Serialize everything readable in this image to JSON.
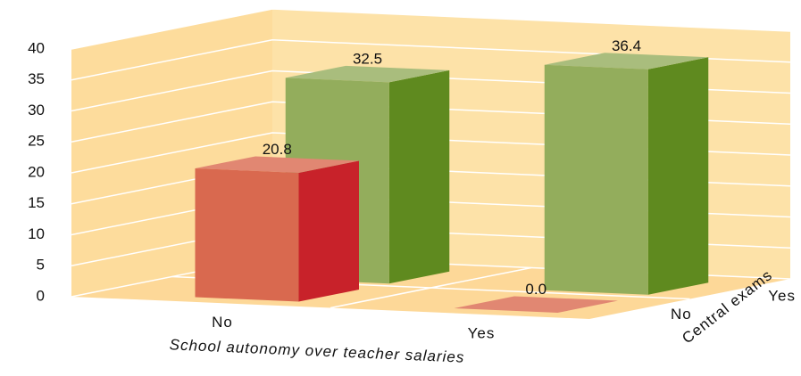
{
  "chart_data": {
    "type": "bar3d",
    "categories": [
      "No",
      "Yes"
    ],
    "xlabel": "School autonomy over teacher salaries",
    "zlabel": "Central exams",
    "series": [
      {
        "name": "No",
        "color": "#d9694f",
        "values": [
          20.8,
          0
        ],
        "value_labels": [
          "20.8",
          "0.0"
        ]
      },
      {
        "name": "Yes",
        "color": "#93ad5c",
        "values": [
          32.5,
          36.4
        ]
      }
    ],
    "ylim": [
      0,
      40
    ],
    "yticks": [
      0,
      5,
      10,
      15,
      20,
      25,
      30,
      35,
      40
    ],
    "grid": true
  }
}
